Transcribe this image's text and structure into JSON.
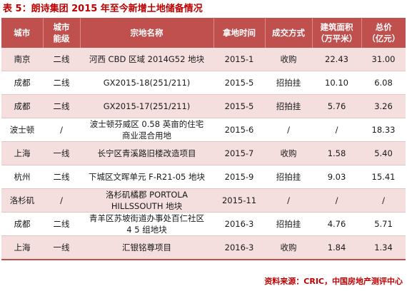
{
  "title": "表 5：朗诗集团 2015 年至今新增土地储备情况",
  "headers": {
    "city": "城市",
    "tier": [
      "城市",
      "能级"
    ],
    "name": "宗地名称",
    "time": "拿地时间",
    "method": "成交方式",
    "area": [
      "建筑面积",
      "（万平米）"
    ],
    "price": [
      "总价",
      "（亿元）"
    ]
  },
  "rows": [
    {
      "city": "南京",
      "tier": "二线",
      "name": [
        "河西 CBD 区域 2014G52 地块"
      ],
      "time": "2015-1",
      "method": "收购",
      "area": "22.43",
      "price": "31.00"
    },
    {
      "city": "成都",
      "tier": "二线",
      "name": [
        "GX2015-18(251/211)"
      ],
      "time": "2015-5",
      "method": "招拍挂",
      "area": "10.10",
      "price": "6.08"
    },
    {
      "city": "成都",
      "tier": "二线",
      "name": [
        "GX2015-17(251/211)"
      ],
      "time": "2015-5",
      "method": "招拍挂",
      "area": "5.76",
      "price": "3.26"
    },
    {
      "city": "波士顿",
      "tier": "/",
      "name": [
        "波士顿芬威区 0.58 英亩的住宅",
        "商业混合用地"
      ],
      "time": "2015-6",
      "method": "/",
      "area": "/",
      "price": "18.33"
    },
    {
      "city": "上海",
      "tier": "一线",
      "name": [
        "长宁区青溪路旧楼改造项目"
      ],
      "time": "2015-7",
      "method": "收购",
      "area": "1.58",
      "price": "5.40"
    },
    {
      "city": "杭州",
      "tier": "二线",
      "name": [
        "下城区文晖单元 F-R21-05 地块"
      ],
      "time": "2015-9",
      "method": "招拍挂",
      "area": "9.03",
      "price": "15.41"
    },
    {
      "city": "洛杉矶",
      "tier": "/",
      "name": [
        "洛杉矶橘郡 PORTOLA",
        "HILLSSOUTH 地块"
      ],
      "time": "2015-11",
      "method": "/",
      "area": "/",
      "price": "/"
    },
    {
      "city": "成都",
      "tier": "二线",
      "name": [
        "青羊区苏坡街道办事处百仁社区",
        "4 5 组地块"
      ],
      "time": "2016-3",
      "method": "招拍挂",
      "area": "4.76",
      "price": "5.71"
    },
    {
      "city": "上海",
      "tier": "一线",
      "name": [
        "汇银铭尊项目"
      ],
      "time": "2016-3",
      "method": "收购",
      "area": "1.84",
      "price": "1.34"
    }
  ],
  "source": "资料来源：CRIC，中国房地产测评中心"
}
